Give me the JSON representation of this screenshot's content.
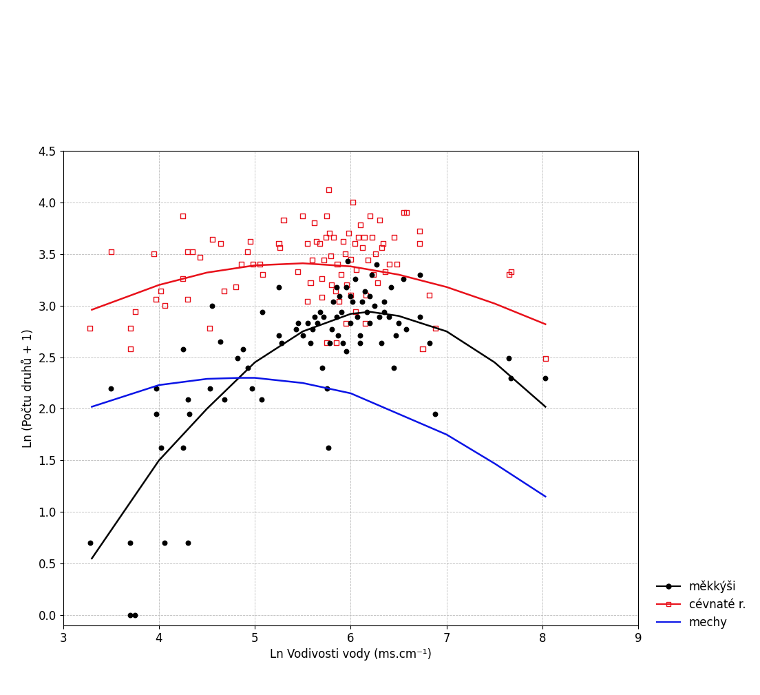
{
  "chart_data": {
    "type": "scatter",
    "x_label": "Ln Vodivosti vody (ms.cm⁻¹)",
    "y_label": "Ln (Počtu druhů + 1)",
    "xlim": [
      3,
      9
    ],
    "xticks": [
      3,
      4,
      5,
      6,
      7,
      8,
      9
    ],
    "ylim": [
      -0.1,
      4.5
    ],
    "yticks": [
      {
        "value": 0,
        "label": "0.0"
      },
      {
        "value": 0.5,
        "label": "0.5"
      },
      {
        "value": 1,
        "label": "1.0"
      },
      {
        "value": 1.5,
        "label": "1.5"
      },
      {
        "value": 2,
        "label": "2.0"
      },
      {
        "value": 2.5,
        "label": "2.5"
      },
      {
        "value": 3,
        "label": "3.0"
      },
      {
        "value": 3.5,
        "label": "3.5"
      },
      {
        "value": 4,
        "label": "4.0"
      },
      {
        "value": 4.5,
        "label": "4.5"
      }
    ],
    "grid": true,
    "legend": "lower right",
    "series": [
      {
        "name": "cévnaté r.",
        "color": "#e8101a",
        "marker": "square",
        "line_style": "solid",
        "points_x": [
          3.28,
          3.5,
          3.7,
          3.7,
          3.75,
          3.95,
          3.97,
          4.02,
          4.06,
          4.25,
          4.25,
          4.3,
          4.3,
          4.35,
          4.43,
          4.53,
          4.56,
          4.64,
          4.68,
          4.8,
          4.86,
          4.92,
          4.95,
          4.98,
          5.05,
          5.08,
          5.25,
          5.26,
          5.3,
          5.45,
          5.5,
          5.55,
          5.58,
          5.6,
          5.62,
          5.64,
          5.68,
          5.7,
          5.72,
          5.74,
          5.75,
          5.77,
          5.78,
          5.79,
          5.8,
          5.82,
          5.84,
          5.86,
          5.88,
          5.9,
          5.92,
          5.94,
          5.96,
          5.98,
          6.0,
          6.02,
          6.04,
          6.06,
          6.08,
          6.1,
          6.12,
          6.14,
          6.16,
          6.18,
          6.2,
          6.22,
          6.24,
          6.26,
          6.28,
          6.3,
          6.32,
          6.34,
          6.36,
          6.4,
          6.45,
          6.48,
          6.55,
          6.58,
          6.72,
          6.72,
          6.75,
          6.82,
          6.88,
          7.65,
          7.67,
          8.03,
          5.85,
          5.75,
          6.05,
          5.95,
          6.15,
          6.0,
          5.55,
          5.7
        ],
        "points_y": [
          2.78,
          3.52,
          2.58,
          2.78,
          2.94,
          3.5,
          3.06,
          3.14,
          3.0,
          3.87,
          3.26,
          3.52,
          3.06,
          3.52,
          3.47,
          2.78,
          3.64,
          3.6,
          3.14,
          3.18,
          3.4,
          3.52,
          3.62,
          3.4,
          3.4,
          3.3,
          3.6,
          3.56,
          3.83,
          3.33,
          3.87,
          3.6,
          3.22,
          3.44,
          3.8,
          3.62,
          3.6,
          3.08,
          3.44,
          3.66,
          3.87,
          4.12,
          3.7,
          3.48,
          3.2,
          3.66,
          3.14,
          3.4,
          3.04,
          3.3,
          3.62,
          3.5,
          3.2,
          3.7,
          3.1,
          4.0,
          3.6,
          3.35,
          3.66,
          3.78,
          3.56,
          3.66,
          3.1,
          3.44,
          3.87,
          3.66,
          3.3,
          3.5,
          3.22,
          3.83,
          3.56,
          3.6,
          3.33,
          3.4,
          3.66,
          3.4,
          3.9,
          3.9,
          3.72,
          3.6,
          2.58,
          3.1,
          2.78,
          3.3,
          3.33,
          2.49,
          2.64,
          2.64,
          2.94,
          2.83,
          2.83,
          3.45,
          3.04,
          3.26
        ],
        "fit_x": [
          3.3,
          4.0,
          4.5,
          5.0,
          5.5,
          6.0,
          6.5,
          7.0,
          7.5,
          8.03
        ],
        "fit_y": [
          2.96,
          3.2,
          3.32,
          3.39,
          3.41,
          3.38,
          3.3,
          3.18,
          3.02,
          2.82
        ]
      },
      {
        "name": "měkkýši",
        "color": "#000000",
        "marker": "circle",
        "line_style": "solid",
        "points_x": [
          3.28,
          3.7,
          3.7,
          3.75,
          3.5,
          3.97,
          3.97,
          4.02,
          4.06,
          4.25,
          4.25,
          4.3,
          4.32,
          4.3,
          4.53,
          4.55,
          4.64,
          4.68,
          4.82,
          4.88,
          4.93,
          4.97,
          5.07,
          5.08,
          5.25,
          5.25,
          5.28,
          5.43,
          5.45,
          5.5,
          5.55,
          5.58,
          5.6,
          5.62,
          5.65,
          5.68,
          5.7,
          5.72,
          5.75,
          5.77,
          5.78,
          5.8,
          5.82,
          5.85,
          5.87,
          5.88,
          5.9,
          5.92,
          5.95,
          5.97,
          6.0,
          6.02,
          6.05,
          6.07,
          6.1,
          6.12,
          6.15,
          6.17,
          6.2,
          6.22,
          6.25,
          6.27,
          6.3,
          6.32,
          6.35,
          6.4,
          6.42,
          6.45,
          6.47,
          6.5,
          6.55,
          6.58,
          6.72,
          6.72,
          6.82,
          6.88,
          7.65,
          7.67,
          8.03,
          6.0,
          5.95,
          6.1,
          6.2,
          5.85,
          6.35
        ],
        "points_y": [
          0.7,
          0.7,
          0.0,
          0.0,
          2.2,
          2.2,
          1.95,
          1.62,
          0.7,
          2.58,
          1.62,
          2.09,
          1.95,
          0.7,
          2.2,
          3.0,
          2.65,
          2.09,
          2.49,
          2.58,
          2.4,
          2.2,
          2.09,
          2.94,
          2.71,
          3.18,
          2.64,
          2.77,
          2.83,
          2.71,
          2.83,
          2.64,
          2.77,
          2.89,
          2.83,
          2.94,
          2.4,
          2.89,
          2.2,
          1.62,
          2.64,
          2.77,
          3.04,
          2.89,
          2.71,
          3.09,
          2.94,
          2.64,
          3.18,
          3.43,
          2.83,
          3.04,
          3.26,
          2.89,
          2.71,
          3.04,
          3.14,
          2.94,
          2.83,
          3.3,
          3.0,
          3.4,
          2.89,
          2.64,
          3.04,
          2.89,
          3.18,
          2.4,
          2.71,
          2.83,
          3.26,
          2.77,
          3.3,
          2.89,
          2.64,
          1.95,
          2.49,
          2.3,
          2.3,
          3.09,
          2.56,
          2.64,
          3.09,
          3.18,
          2.94
        ],
        "fit_x": [
          3.3,
          4.0,
          4.5,
          5.0,
          5.5,
          6.0,
          6.2,
          6.5,
          7.0,
          7.5,
          8.03
        ],
        "fit_y": [
          0.55,
          1.5,
          2.0,
          2.45,
          2.75,
          2.92,
          2.94,
          2.9,
          2.75,
          2.45,
          2.02
        ]
      },
      {
        "name": "mechy",
        "color": "#0a14e6",
        "line_style": "solid",
        "fit_x": [
          3.3,
          4.0,
          4.5,
          4.85,
          5.0,
          5.5,
          6.0,
          6.5,
          7.0,
          7.5,
          8.03
        ],
        "fit_y": [
          2.02,
          2.23,
          2.29,
          2.3,
          2.3,
          2.25,
          2.15,
          1.95,
          1.75,
          1.47,
          1.15
        ]
      }
    ]
  }
}
